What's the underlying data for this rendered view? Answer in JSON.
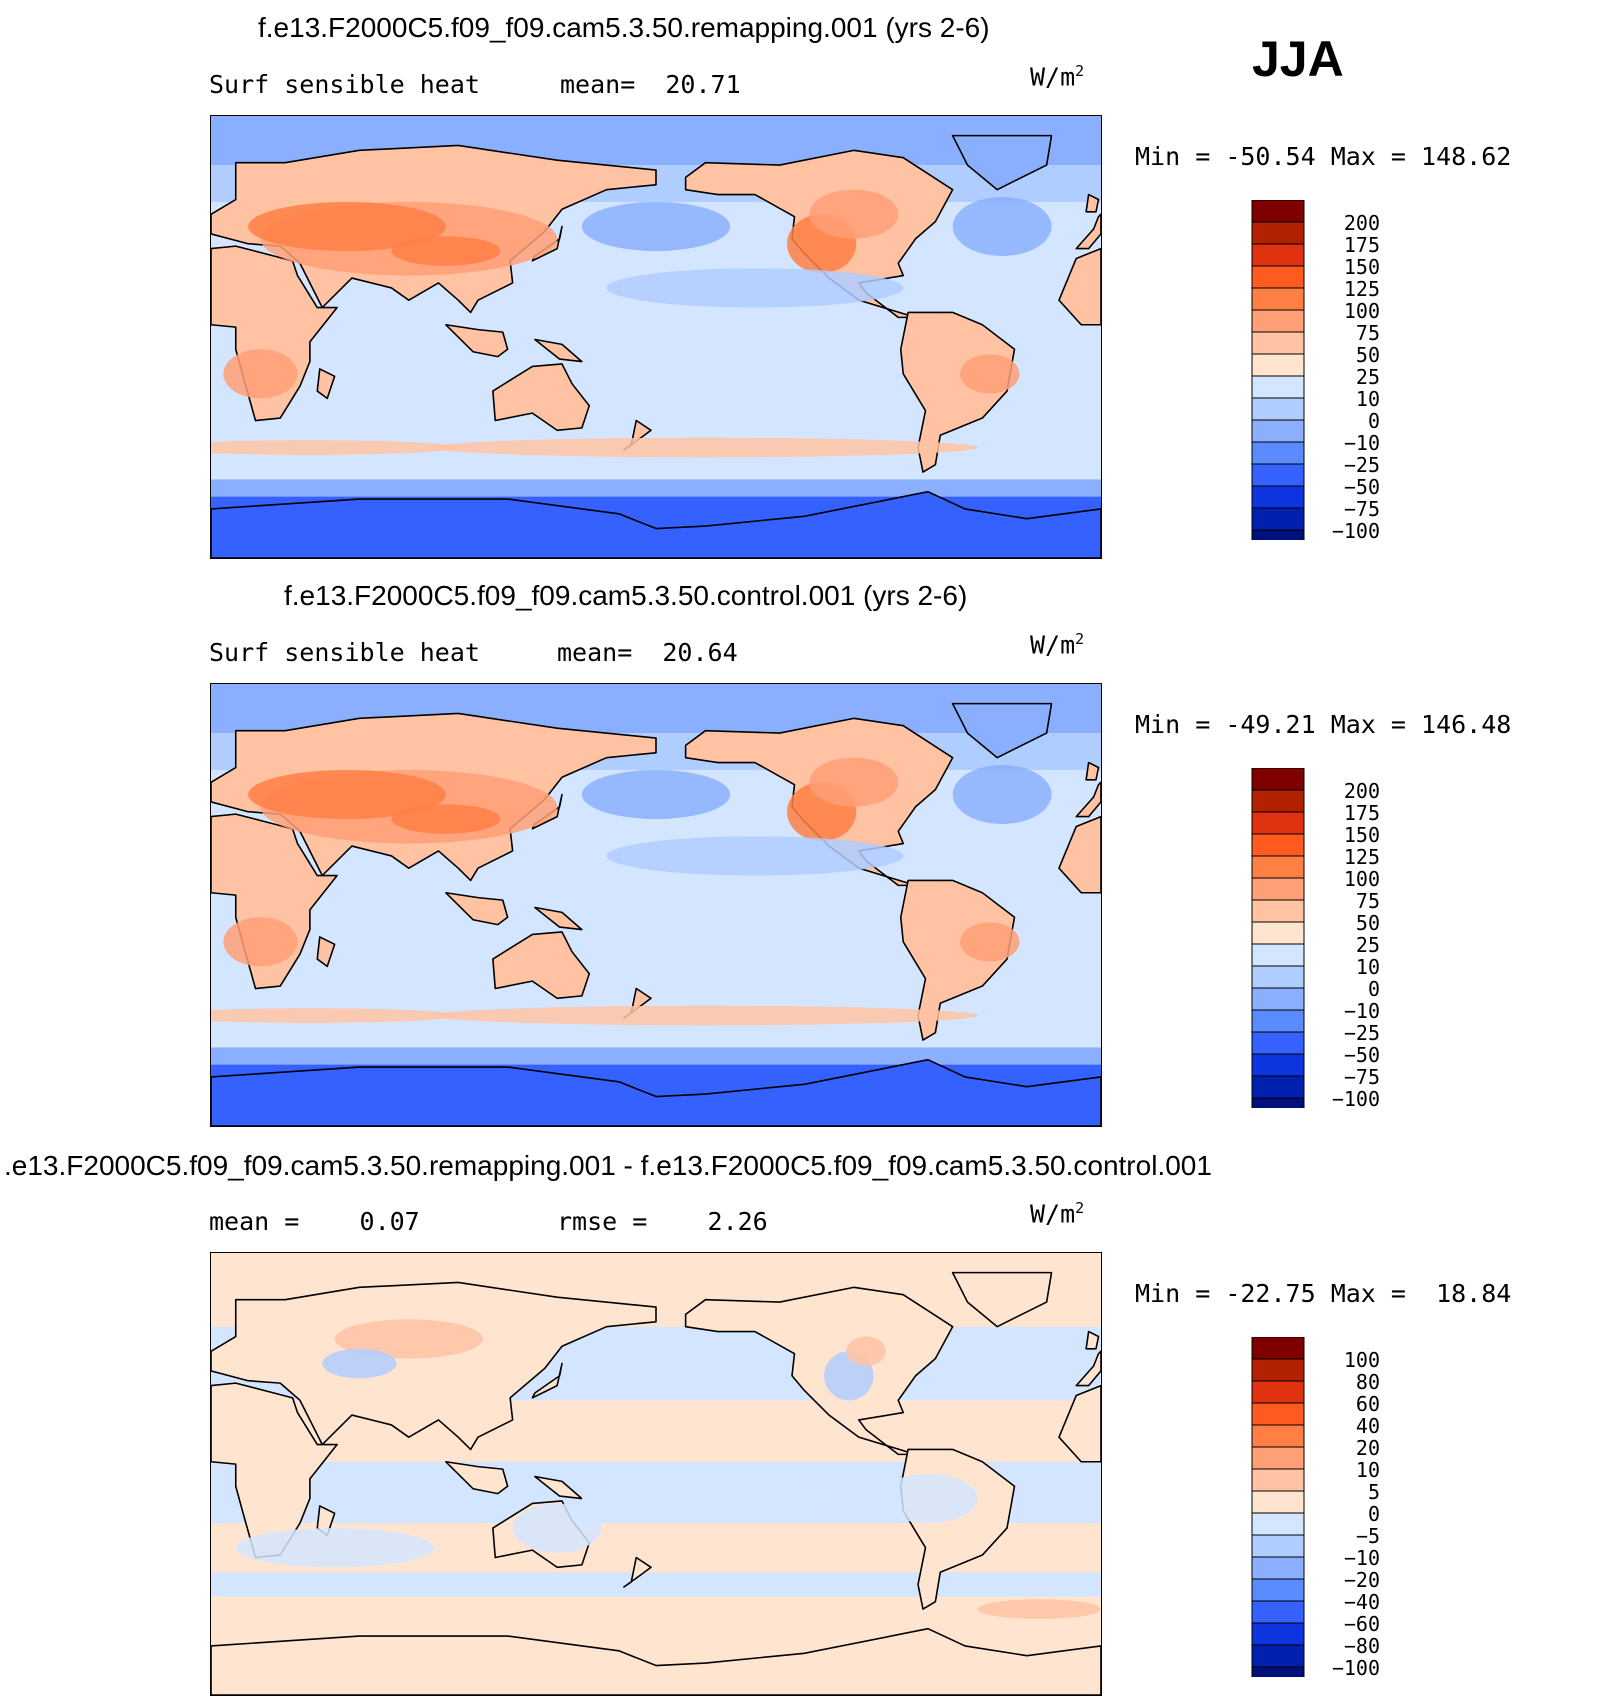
{
  "season": "JJA",
  "panels": [
    {
      "title": "f.e13.F2000C5.f09_f09.cam5.3.50.remapping.001 (yrs 2-6)",
      "left_label": "Surf sensible heat",
      "mid_label": "mean=",
      "mid_value": "20.71",
      "units_prefix": "W/m",
      "units_sup": "2",
      "min_label": "Min =",
      "min_value": "-50.54",
      "max_label": "Max =",
      "max_value": "148.62",
      "kind": "field",
      "colorbar": {
        "labels": [
          "200",
          "175",
          "150",
          "125",
          "100",
          "75",
          "50",
          "25",
          "10",
          "0",
          "-10",
          "-25",
          "-50",
          "-75",
          "-100"
        ],
        "colors": [
          "#7f0000",
          "#b22200",
          "#e03210",
          "#ff5a20",
          "#ff7f45",
          "#ff9f75",
          "#ffc3a3",
          "#ffe4d0",
          "#d4e6ff",
          "#b0cdff",
          "#8aafff",
          "#5a8bff",
          "#3461ff",
          "#0c35e0",
          "#0020b0",
          "#00107a"
        ]
      }
    },
    {
      "title": "f.e13.F2000C5.f09_f09.cam5.3.50.control.001 (yrs 2-6)",
      "left_label": "Surf sensible heat",
      "mid_label": "mean=",
      "mid_value": "20.64",
      "units_prefix": "W/m",
      "units_sup": "2",
      "min_label": "Min =",
      "min_value": "-49.21",
      "max_label": "Max =",
      "max_value": "146.48",
      "kind": "field",
      "colorbar": {
        "labels": [
          "200",
          "175",
          "150",
          "125",
          "100",
          "75",
          "50",
          "25",
          "10",
          "0",
          "-10",
          "-25",
          "-50",
          "-75",
          "-100"
        ],
        "colors": [
          "#7f0000",
          "#b22200",
          "#e03210",
          "#ff5a20",
          "#ff7f45",
          "#ff9f75",
          "#ffc3a3",
          "#ffe4d0",
          "#d4e6ff",
          "#b0cdff",
          "#8aafff",
          "#5a8bff",
          "#3461ff",
          "#0c35e0",
          "#0020b0",
          "#00107a"
        ]
      }
    },
    {
      "title": ".e13.F2000C5.f09_f09.cam5.3.50.remapping.001 - f.e13.F2000C5.f09_f09.cam5.3.50.control.001",
      "left_label": "mean =",
      "left_value": "0.07",
      "mid_label": "rmse =",
      "mid_value": "2.26",
      "units_prefix": "W/m",
      "units_sup": "2",
      "min_label": "Min =",
      "min_value": "-22.75",
      "max_label": "Max =",
      "max_value": "18.84",
      "kind": "diff",
      "colorbar": {
        "labels": [
          "100",
          "80",
          "60",
          "40",
          "20",
          "10",
          "5",
          "0",
          "-5",
          "-10",
          "-20",
          "-40",
          "-60",
          "-80",
          "-100"
        ],
        "colors": [
          "#7f0000",
          "#b22200",
          "#e03210",
          "#ff5a20",
          "#ff7f45",
          "#ff9f75",
          "#ffc3a3",
          "#ffe4d0",
          "#d4e6ff",
          "#b0cdff",
          "#8aafff",
          "#5a8bff",
          "#3461ff",
          "#0c35e0",
          "#0020b0",
          "#00107a"
        ]
      }
    }
  ],
  "chart_data": [
    {
      "type": "heatmap",
      "title": "f.e13.F2000C5.f09_f09.cam5.3.50.remapping.001 (yrs 2-6)",
      "variable": "Surf sensible heat",
      "units": "W/m2",
      "season": "JJA",
      "mean": 20.71,
      "min": -50.54,
      "max": 148.62,
      "contour_levels": [
        -100,
        -75,
        -50,
        -25,
        -10,
        0,
        10,
        25,
        50,
        75,
        100,
        125,
        150,
        175,
        200
      ]
    },
    {
      "type": "heatmap",
      "title": "f.e13.F2000C5.f09_f09.cam5.3.50.control.001 (yrs 2-6)",
      "variable": "Surf sensible heat",
      "units": "W/m2",
      "season": "JJA",
      "mean": 20.64,
      "min": -49.21,
      "max": 146.48,
      "contour_levels": [
        -100,
        -75,
        -50,
        -25,
        -10,
        0,
        10,
        25,
        50,
        75,
        100,
        125,
        150,
        175,
        200
      ]
    },
    {
      "type": "heatmap",
      "title": ".e13.F2000C5.f09_f09.cam5.3.50.remapping.001 - f.e13.F2000C5.f09_f09.cam5.3.50.control.001",
      "units": "W/m2",
      "mean": 0.07,
      "rmse": 2.26,
      "min": -22.75,
      "max": 18.84,
      "contour_levels": [
        -100,
        -80,
        -60,
        -40,
        -20,
        -10,
        -5,
        0,
        5,
        10,
        20,
        40,
        60,
        80,
        100
      ]
    }
  ]
}
